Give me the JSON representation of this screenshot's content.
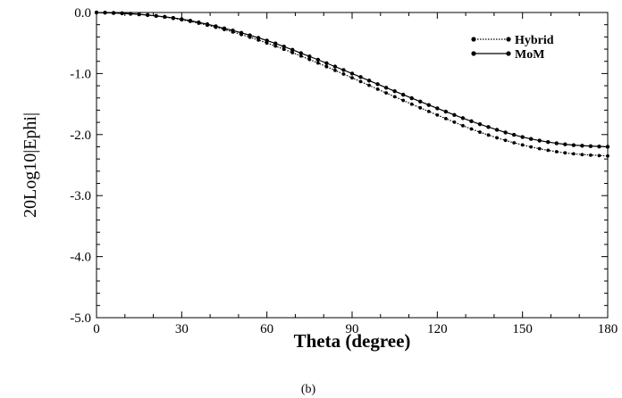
{
  "chart_data": {
    "type": "line",
    "xlabel": "Theta (degree)",
    "ylabel": "20Log10|Ephi|",
    "caption": "(b)",
    "xlim": [
      0,
      180
    ],
    "ylim": [
      -5.0,
      0.0
    ],
    "xticks": [
      0,
      30,
      60,
      90,
      120,
      150,
      180
    ],
    "xtick_labels": [
      "0",
      "30",
      "60",
      "90",
      "120",
      "150",
      "180"
    ],
    "yticks": [
      0.0,
      -1.0,
      -2.0,
      -3.0,
      -4.0,
      -5.0
    ],
    "ytick_labels": [
      "0.0",
      "-1.0",
      "-2.0",
      "-3.0",
      "-4.0",
      "-5.0"
    ],
    "legend_position": "top-right",
    "grid": false,
    "x": [
      0,
      15,
      30,
      45,
      60,
      75,
      90,
      105,
      120,
      135,
      150,
      165,
      180
    ],
    "series": [
      {
        "name": "Hybrid",
        "style": "dotted",
        "color": "#000000",
        "values": [
          0.0,
          -0.03,
          -0.12,
          -0.28,
          -0.5,
          -0.77,
          -1.07,
          -1.38,
          -1.68,
          -1.96,
          -2.17,
          -2.3,
          -2.35
        ]
      },
      {
        "name": "MoM",
        "style": "solid",
        "color": "#000000",
        "values": [
          0.0,
          -0.03,
          -0.11,
          -0.26,
          -0.46,
          -0.72,
          -1.0,
          -1.29,
          -1.57,
          -1.83,
          -2.04,
          -2.16,
          -2.2
        ]
      }
    ]
  }
}
